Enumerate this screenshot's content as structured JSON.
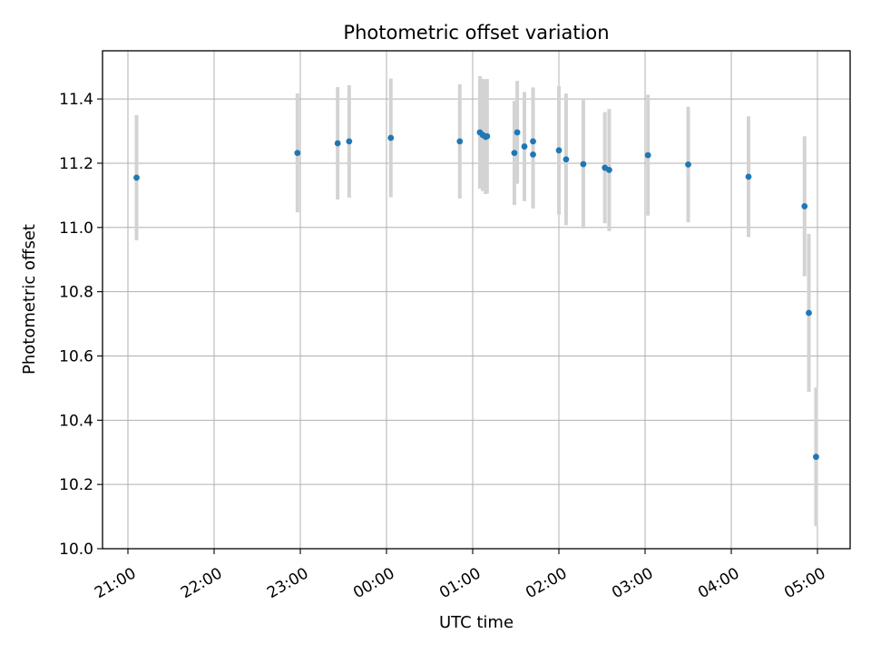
{
  "chart_data": {
    "type": "scatter",
    "title": "Photometric offset variation",
    "xlabel": "UTC time",
    "ylabel": "Photometric offset",
    "x_ticks": [
      "21:00",
      "22:00",
      "23:00",
      "00:00",
      "01:00",
      "02:00",
      "03:00",
      "04:00",
      "05:00"
    ],
    "y_ticks": [
      "10.0",
      "10.2",
      "10.4",
      "10.6",
      "10.8",
      "11.0",
      "11.2",
      "11.4"
    ],
    "ylim": [
      10.0,
      11.55
    ],
    "grid": true,
    "colors": {
      "point": "#1f77b4",
      "errorbar": "#d3d3d3",
      "grid": "#b0b0b0"
    },
    "series": [
      {
        "points": [
          {
            "t": "21:06",
            "y": 11.155,
            "err": 0.195
          },
          {
            "t": "22:58",
            "y": 11.232,
            "err": 0.185
          },
          {
            "t": "23:26",
            "y": 11.262,
            "err": 0.175
          },
          {
            "t": "23:34",
            "y": 11.268,
            "err": 0.175
          },
          {
            "t": "00:03",
            "y": 11.279,
            "err": 0.185
          },
          {
            "t": "00:51",
            "y": 11.268,
            "err": 0.178
          },
          {
            "t": "01:05",
            "y": 11.296,
            "err": 0.175
          },
          {
            "t": "01:07",
            "y": 11.288,
            "err": 0.175
          },
          {
            "t": "01:09",
            "y": 11.282,
            "err": 0.178
          },
          {
            "t": "01:10",
            "y": 11.284,
            "err": 0.178
          },
          {
            "t": "01:29",
            "y": 11.232,
            "err": 0.162
          },
          {
            "t": "01:31",
            "y": 11.296,
            "err": 0.16
          },
          {
            "t": "01:36",
            "y": 11.252,
            "err": 0.17
          },
          {
            "t": "01:42",
            "y": 11.268,
            "err": 0.168
          },
          {
            "t": "01:42",
            "y": 11.227,
            "err": 0.168
          },
          {
            "t": "02:00",
            "y": 11.24,
            "err": 0.2
          },
          {
            "t": "02:05",
            "y": 11.212,
            "err": 0.205
          },
          {
            "t": "02:17",
            "y": 11.197,
            "err": 0.2
          },
          {
            "t": "02:32",
            "y": 11.186,
            "err": 0.173
          },
          {
            "t": "02:35",
            "y": 11.179,
            "err": 0.19
          },
          {
            "t": "03:02",
            "y": 11.225,
            "err": 0.188
          },
          {
            "t": "03:30",
            "y": 11.196,
            "err": 0.18
          },
          {
            "t": "04:12",
            "y": 11.158,
            "err": 0.188
          },
          {
            "t": "04:51",
            "y": 11.066,
            "err": 0.218
          },
          {
            "t": "04:54",
            "y": 10.734,
            "err": 0.246
          },
          {
            "t": "04:59",
            "y": 10.286,
            "err": 0.216
          }
        ]
      }
    ]
  }
}
